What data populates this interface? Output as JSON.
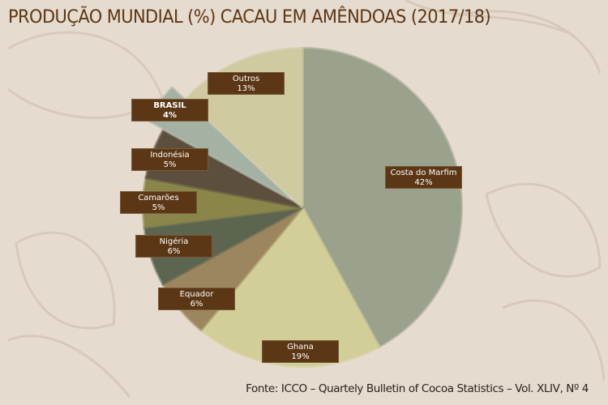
{
  "chart_data": {
    "type": "pie",
    "title": "PRODUÇÃO MUNDIAL (%) CACAU EM AMÊNDOAS (2017/18)",
    "slices": [
      {
        "label": "Costa do Marfim",
        "value": 42,
        "display": "42%",
        "color": "#9fa690"
      },
      {
        "label": "Ghana",
        "value": 19,
        "display": "19%",
        "color": "#d8d49c"
      },
      {
        "label": "Equador",
        "value": 6,
        "display": "6%",
        "color": "#a08a62"
      },
      {
        "label": "Nigéria",
        "value": 6,
        "display": "6%",
        "color": "#5f6852"
      },
      {
        "label": "Camarões",
        "value": 5,
        "display": "5%",
        "color": "#8e8a4c"
      },
      {
        "label": "Indonésia",
        "value": 5,
        "display": "5%",
        "color": "#605140"
      },
      {
        "label": "BRASIL",
        "value": 4,
        "display": "4%",
        "color": "#a9b7a8",
        "exploded": true
      },
      {
        "label": "Outros",
        "value": 13,
        "display": "13%",
        "color": "#d6d0a6"
      }
    ],
    "legend": "none (data labels)"
  },
  "source": "Fonte: ICCO – Quartely Bulletin of Cocoa Statistics – Vol. XLIV, Nº 4"
}
